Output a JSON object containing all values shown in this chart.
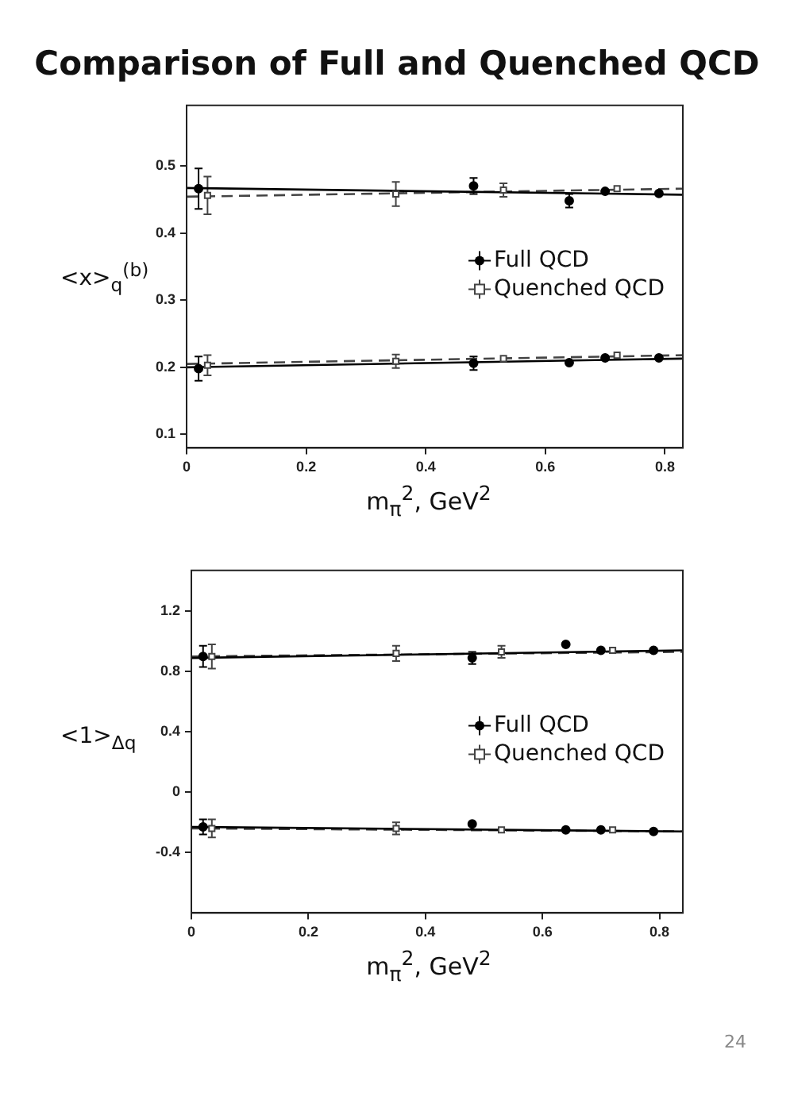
{
  "chart_data": [
    {
      "type": "scatter",
      "title": "Comparison of Full and Quenched QCD",
      "xlabel": "m$_{π}$$^{2}$, GeV$^{2}$",
      "ylabel": "<x>$_{q}$$^{(b)}$",
      "xlim": [
        0,
        0.83
      ],
      "xticks": [
        0,
        0.2,
        0.4,
        0.6,
        0.8
      ],
      "ylim": [
        0.08,
        0.59
      ],
      "yticks": [
        0.1,
        0.2,
        0.3,
        0.4,
        0.5
      ],
      "grid": false,
      "legend": "right",
      "series": [
        {
          "name": "Full QCD",
          "type": "scatter",
          "marker": "circle",
          "color": "#000000",
          "x": [
            0.02,
            0.48,
            0.64,
            0.7,
            0.79
          ],
          "values": [
            0.466,
            0.47,
            0.448,
            0.462,
            0.459
          ],
          "errors": [
            0.03,
            0.012,
            0.01,
            null,
            null
          ]
        },
        {
          "name": "Quenched QCD",
          "type": "scatter",
          "marker": "square",
          "color": "#444444",
          "x": [
            0.035,
            0.35,
            0.53,
            0.72
          ],
          "values": [
            0.456,
            0.458,
            0.464,
            0.466
          ],
          "errors": [
            0.028,
            0.018,
            0.01,
            null
          ]
        },
        {
          "type": "scatter",
          "marker": "circle",
          "color": "#000000",
          "x": [
            0.02,
            0.48,
            0.64,
            0.7,
            0.79
          ],
          "values": [
            0.198,
            0.206,
            0.207,
            0.214,
            0.214
          ],
          "errors": [
            0.018,
            0.01,
            null,
            null,
            null
          ]
        },
        {
          "type": "scatter",
          "marker": "square",
          "color": "#444444",
          "x": [
            0.035,
            0.35,
            0.53,
            0.72
          ],
          "values": [
            0.203,
            0.209,
            0.213,
            0.218
          ],
          "errors": [
            0.015,
            0.01,
            null,
            null
          ]
        },
        {
          "type": "line",
          "marker": "none",
          "line_style": "solid",
          "color": "#000000",
          "x": [
            0,
            0.83
          ],
          "values": [
            0.467,
            0.457
          ]
        },
        {
          "type": "line",
          "marker": "none",
          "line_style": "dashed",
          "color": "#444444",
          "x": [
            0,
            0.83
          ],
          "values": [
            0.454,
            0.466
          ]
        },
        {
          "type": "line",
          "marker": "none",
          "line_style": "solid",
          "color": "#000000",
          "x": [
            0,
            0.83
          ],
          "values": [
            0.2,
            0.213
          ]
        },
        {
          "type": "line",
          "marker": "none",
          "line_style": "dashed",
          "color": "#444444",
          "x": [
            0,
            0.83
          ],
          "values": [
            0.205,
            0.218
          ]
        }
      ]
    },
    {
      "type": "scatter",
      "xlabel": "m$_{π}$$^{2}$, GeV$^{2}$",
      "ylabel": "<1>$_{Δq}$",
      "xlim": [
        0,
        0.84
      ],
      "xticks": [
        0,
        0.2,
        0.4,
        0.6,
        0.8
      ],
      "ylim": [
        -0.8,
        1.47
      ],
      "yticks": [
        -0.4,
        0,
        0.4,
        0.8,
        1.2
      ],
      "grid": false,
      "legend": "right",
      "annotations": [
        "24"
      ],
      "series": [
        {
          "name": "Full QCD",
          "type": "scatter",
          "marker": "circle",
          "color": "#000000",
          "x": [
            0.02,
            0.48,
            0.64,
            0.7,
            0.79
          ],
          "values": [
            0.9,
            0.89,
            0.98,
            0.94,
            0.94
          ],
          "errors": [
            0.07,
            0.04,
            null,
            null,
            null
          ]
        },
        {
          "name": "Quenched QCD",
          "type": "scatter",
          "marker": "square",
          "color": "#444444",
          "x": [
            0.035,
            0.35,
            0.53,
            0.72
          ],
          "values": [
            0.9,
            0.92,
            0.93,
            0.94
          ],
          "errors": [
            0.08,
            0.05,
            0.04,
            null
          ]
        },
        {
          "type": "scatter",
          "marker": "circle",
          "color": "#000000",
          "x": [
            0.02,
            0.48,
            0.64,
            0.7,
            0.79
          ],
          "values": [
            -0.23,
            -0.21,
            -0.25,
            -0.25,
            -0.26
          ],
          "errors": [
            0.05,
            null,
            null,
            null,
            null
          ]
        },
        {
          "type": "scatter",
          "marker": "square",
          "color": "#444444",
          "x": [
            0.035,
            0.35,
            0.53,
            0.72
          ],
          "values": [
            -0.24,
            -0.24,
            -0.25,
            -0.25
          ],
          "errors": [
            0.06,
            0.04,
            null,
            null
          ]
        },
        {
          "type": "line",
          "marker": "none",
          "line_style": "solid",
          "color": "#000000",
          "x": [
            0,
            0.84
          ],
          "values": [
            0.89,
            0.94
          ]
        },
        {
          "type": "line",
          "marker": "none",
          "line_style": "dashed",
          "color": "#444444",
          "x": [
            0,
            0.84
          ],
          "values": [
            0.9,
            0.93
          ]
        },
        {
          "type": "line",
          "marker": "none",
          "line_style": "solid",
          "color": "#000000",
          "x": [
            0,
            0.84
          ],
          "values": [
            -0.23,
            -0.26
          ]
        },
        {
          "type": "line",
          "marker": "none",
          "line_style": "dashed",
          "color": "#444444",
          "x": [
            0,
            0.84
          ],
          "values": [
            -0.24,
            -0.26
          ]
        }
      ]
    }
  ]
}
